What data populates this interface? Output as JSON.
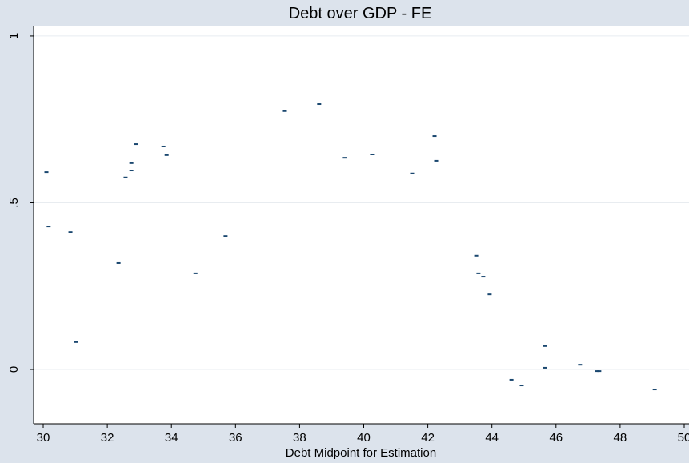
{
  "chart_data": {
    "type": "scatter",
    "title": "Debt over GDP - FE",
    "x_label": "Debt Midpoint for Estimation",
    "color": "#1a476f",
    "grid": true,
    "xlim": [
      29.7,
      50.15
    ],
    "ylim": [
      -0.163,
      1.031
    ],
    "xticks": [
      30,
      32,
      34,
      36,
      38,
      40,
      42,
      44,
      46,
      48,
      50
    ],
    "yticks": [
      0,
      {
        "value": 0.5,
        "label": ".5"
      },
      1
    ],
    "x": [
      30.1,
      30.17,
      30.85,
      31.02,
      32.35,
      32.57,
      32.75,
      32.75,
      32.9,
      33.75,
      33.85,
      34.75,
      35.69,
      37.54,
      38.61,
      39.41,
      40.26,
      41.51,
      42.21,
      42.26,
      43.51,
      43.58,
      43.73,
      43.93,
      44.61,
      44.93,
      45.66,
      45.66,
      46.75,
      47.28,
      47.35,
      49.08
    ],
    "values": [
      0.592,
      0.429,
      0.412,
      0.082,
      0.319,
      0.576,
      0.597,
      0.619,
      0.676,
      0.669,
      0.643,
      0.288,
      0.4,
      0.775,
      0.796,
      0.635,
      0.645,
      0.588,
      0.7,
      0.626,
      0.341,
      0.288,
      0.278,
      0.225,
      -0.031,
      -0.048,
      0.07,
      0.005,
      0.014,
      -0.005,
      -0.005,
      -0.06
    ]
  }
}
